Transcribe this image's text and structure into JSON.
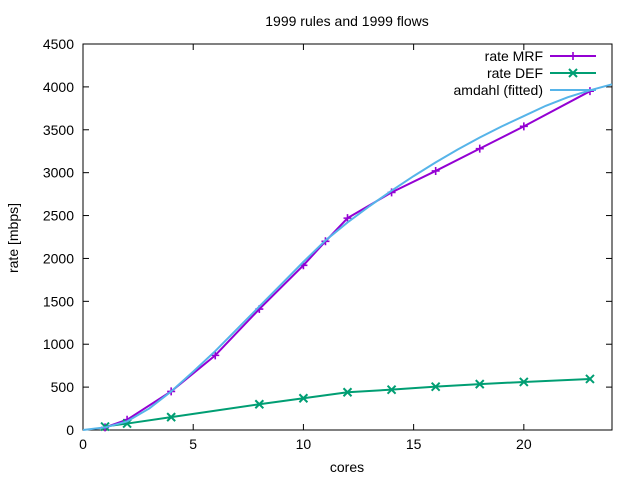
{
  "chart_data": {
    "type": "line",
    "title": "1999 rules and 1999 flows",
    "xlabel": "cores",
    "ylabel": "rate [mbps]",
    "xlim": [
      0,
      24
    ],
    "ylim": [
      0,
      4500
    ],
    "xticks": [
      0,
      5,
      10,
      15,
      20
    ],
    "yticks": [
      0,
      500,
      1000,
      1500,
      2000,
      2500,
      3000,
      3500,
      4000,
      4500
    ],
    "grid": false,
    "legend_position": "top-right",
    "series": [
      {
        "name": "rate MRF",
        "color": "#9400d3",
        "marker": "plus",
        "x": [
          1,
          2,
          4,
          6,
          8,
          10,
          11,
          12,
          14,
          16,
          18,
          20,
          23
        ],
        "y": [
          30,
          120,
          450,
          870,
          1410,
          1920,
          2200,
          2470,
          2770,
          3020,
          3280,
          3540,
          3950
        ]
      },
      {
        "name": "rate DEF",
        "color": "#009e73",
        "marker": "cross",
        "x": [
          1,
          2,
          4,
          8,
          10,
          12,
          14,
          16,
          18,
          20,
          23
        ],
        "y": [
          40,
          75,
          150,
          300,
          370,
          440,
          470,
          505,
          535,
          560,
          595
        ]
      },
      {
        "name": "amdahl (fitted)",
        "color": "#56b4e9",
        "marker": "none",
        "x": [
          0,
          1,
          2,
          3,
          4,
          5,
          6,
          7,
          8,
          9,
          10,
          11,
          12,
          13,
          14,
          15,
          16,
          17,
          18,
          19,
          20,
          21,
          22,
          23,
          24
        ],
        "y": [
          0,
          30,
          100,
          250,
          450,
          680,
          920,
          1180,
          1440,
          1700,
          1960,
          2210,
          2420,
          2610,
          2790,
          2960,
          3120,
          3270,
          3410,
          3540,
          3660,
          3780,
          3880,
          3960,
          4030
        ]
      }
    ]
  }
}
